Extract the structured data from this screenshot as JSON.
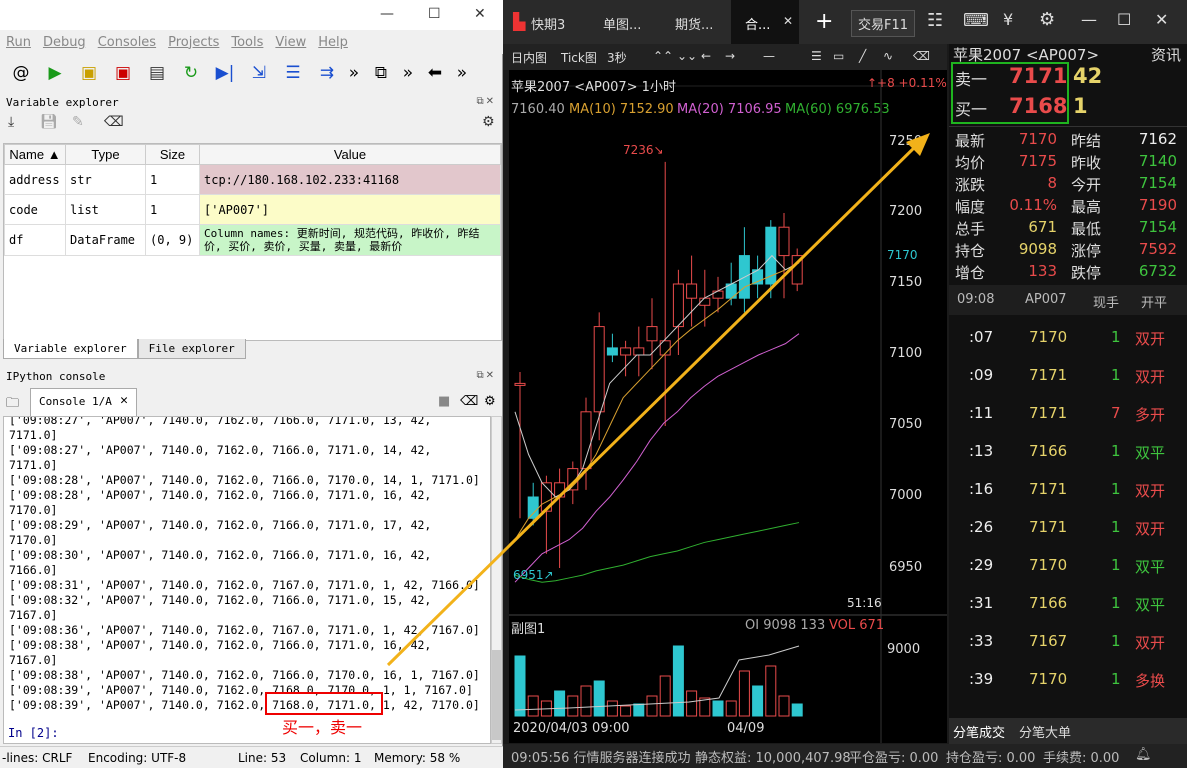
{
  "spyder": {
    "menu": [
      "Run",
      "Debug",
      "Consoles",
      "Projects",
      "Tools",
      "View",
      "Help"
    ],
    "var_explorer_title": "Variable explorer",
    "columns": [
      "Name ▲",
      "Type",
      "Size",
      "Value"
    ],
    "rows": [
      {
        "name": "address",
        "type": "str",
        "size": "1",
        "value": "tcp://180.168.102.233:41168"
      },
      {
        "name": "code",
        "type": "list",
        "size": "1",
        "value": "['AP007']"
      },
      {
        "name": "df",
        "type": "DataFrame",
        "size": "(0, 9)",
        "value": "Column names: 更新时间, 规范代码, 昨收价, 昨结价, 买价, 卖价, 买量, 卖量, 最新价"
      }
    ],
    "tabs": [
      "Variable explorer",
      "File explorer"
    ],
    "ipython_title": "IPython console",
    "console_tab": "Console 1/A",
    "console_lines": [
      "['09:08:27', 'AP007', 7140.0, 7162.0, 7166.0, 7171.0, 13, 42,",
      "7171.0]",
      "['09:08:27', 'AP007', 7140.0, 7162.0, 7166.0, 7171.0, 14, 42,",
      "7171.0]",
      "['09:08:28', 'AP007', 7140.0, 7162.0, 7166.0, 7170.0, 14, 1, 7171.0]",
      "['09:08:28', 'AP007', 7140.0, 7162.0, 7166.0, 7171.0, 16, 42,",
      "7170.0]",
      "['09:08:29', 'AP007', 7140.0, 7162.0, 7166.0, 7171.0, 17, 42,",
      "7170.0]",
      "['09:08:30', 'AP007', 7140.0, 7162.0, 7166.0, 7171.0, 16, 42,",
      "7166.0]",
      "['09:08:31', 'AP007', 7140.0, 7162.0, 7167.0, 7171.0, 1, 42, 7166.0]",
      "['09:08:32', 'AP007', 7140.0, 7162.0, 7166.0, 7171.0, 15, 42,",
      "7167.0]",
      "['09:08:36', 'AP007', 7140.0, 7162.0, 7167.0, 7171.0, 1, 42, 7167.0]",
      "['09:08:38', 'AP007', 7140.0, 7162.0, 7166.0, 7171.0, 16, 42,",
      "7167.0]",
      "['09:08:38', 'AP007', 7140.0, 7162.0, 7166.0, 7170.0, 16, 1, 7167.0]",
      "['09:08:39', 'AP007', 7140.0, 7162.0, 7168.0, 7170.0, 1, 1, 7167.0]",
      "['09:08:39', 'AP007', 7140.0, 7162.0, 7168.0, 7171.0, 1, 42, 7170.0]"
    ],
    "prompt": "In [2]:",
    "annotation": "买一，卖一",
    "status": {
      "eol": "-lines: CRLF",
      "encoding": "Encoding: UTF-8",
      "line": "Line: 53",
      "column": "Column: 1",
      "memory": "Memory: 58 %"
    }
  },
  "trading": {
    "tabs": [
      "快期3",
      "单图...",
      "期货...",
      "合...",
      "交易F11"
    ],
    "toolbar": [
      "日内图",
      "Tick图",
      "3秒"
    ],
    "chart_title": "苹果2007 <AP007> 1小时",
    "change": "↑+8 +0.11%",
    "ma_line": {
      "last": "7160.40",
      "ma10": "MA(10) 7152.90",
      "ma20": "MA(20) 7106.95",
      "ma60": "MA(60) 6976.53"
    },
    "y_ticks": [
      "7250",
      "7200",
      "7150",
      "7100",
      "7050",
      "7000",
      "6950"
    ],
    "price_mark": "7170",
    "high_label": "7236↘",
    "low_label": "6951↗",
    "time_left": "51:16",
    "sub_title": "副图1",
    "oi": "OI 9098 133",
    "vol": "VOL 671",
    "sub_tick": "9000",
    "x_labels": [
      "2020/04/03 09:00",
      "04/09"
    ],
    "symbol": "苹果2007 <AP007>",
    "info": "资讯",
    "ask": {
      "label": "卖一",
      "price": "7171",
      "vol": "42"
    },
    "bid": {
      "label": "买一",
      "price": "7168",
      "vol": "1"
    },
    "stats": [
      [
        "最新",
        "7170",
        "昨结",
        "7162"
      ],
      [
        "均价",
        "7175",
        "昨收",
        "7140"
      ],
      [
        "涨跌",
        "8",
        "今开",
        "7154"
      ],
      [
        "幅度",
        "0.11%",
        "最高",
        "7190"
      ],
      [
        "总手",
        "671",
        "最低",
        "7154"
      ],
      [
        "持仓",
        "9098",
        "涨停",
        "7592"
      ],
      [
        "增仓",
        "133",
        "跌停",
        "6732"
      ]
    ],
    "tick_head": [
      "09:08",
      "AP007",
      "现手",
      "开平"
    ],
    "ticks": [
      [
        ":07",
        "7170",
        "1",
        "双开"
      ],
      [
        ":09",
        "7171",
        "1",
        "双开"
      ],
      [
        ":11",
        "7171",
        "7",
        "多开"
      ],
      [
        ":13",
        "7166",
        "1",
        "双平"
      ],
      [
        ":16",
        "7171",
        "1",
        "双开"
      ],
      [
        ":26",
        "7171",
        "1",
        "双开"
      ],
      [
        ":29",
        "7170",
        "1",
        "双平"
      ],
      [
        ":31",
        "7166",
        "1",
        "双平"
      ],
      [
        ":33",
        "7167",
        "1",
        "双开"
      ],
      [
        ":39",
        "7170",
        "1",
        "多换"
      ]
    ],
    "tick_tabs": [
      "分笔成交",
      "分笔大单"
    ],
    "status": [
      "09:05:56 行情服务器连接成功",
      "静态权益: 10,000,407.98",
      "平仓盈亏: 0.00",
      "持仓盈亏: 0.00",
      "手续费: 0.00"
    ]
  }
}
